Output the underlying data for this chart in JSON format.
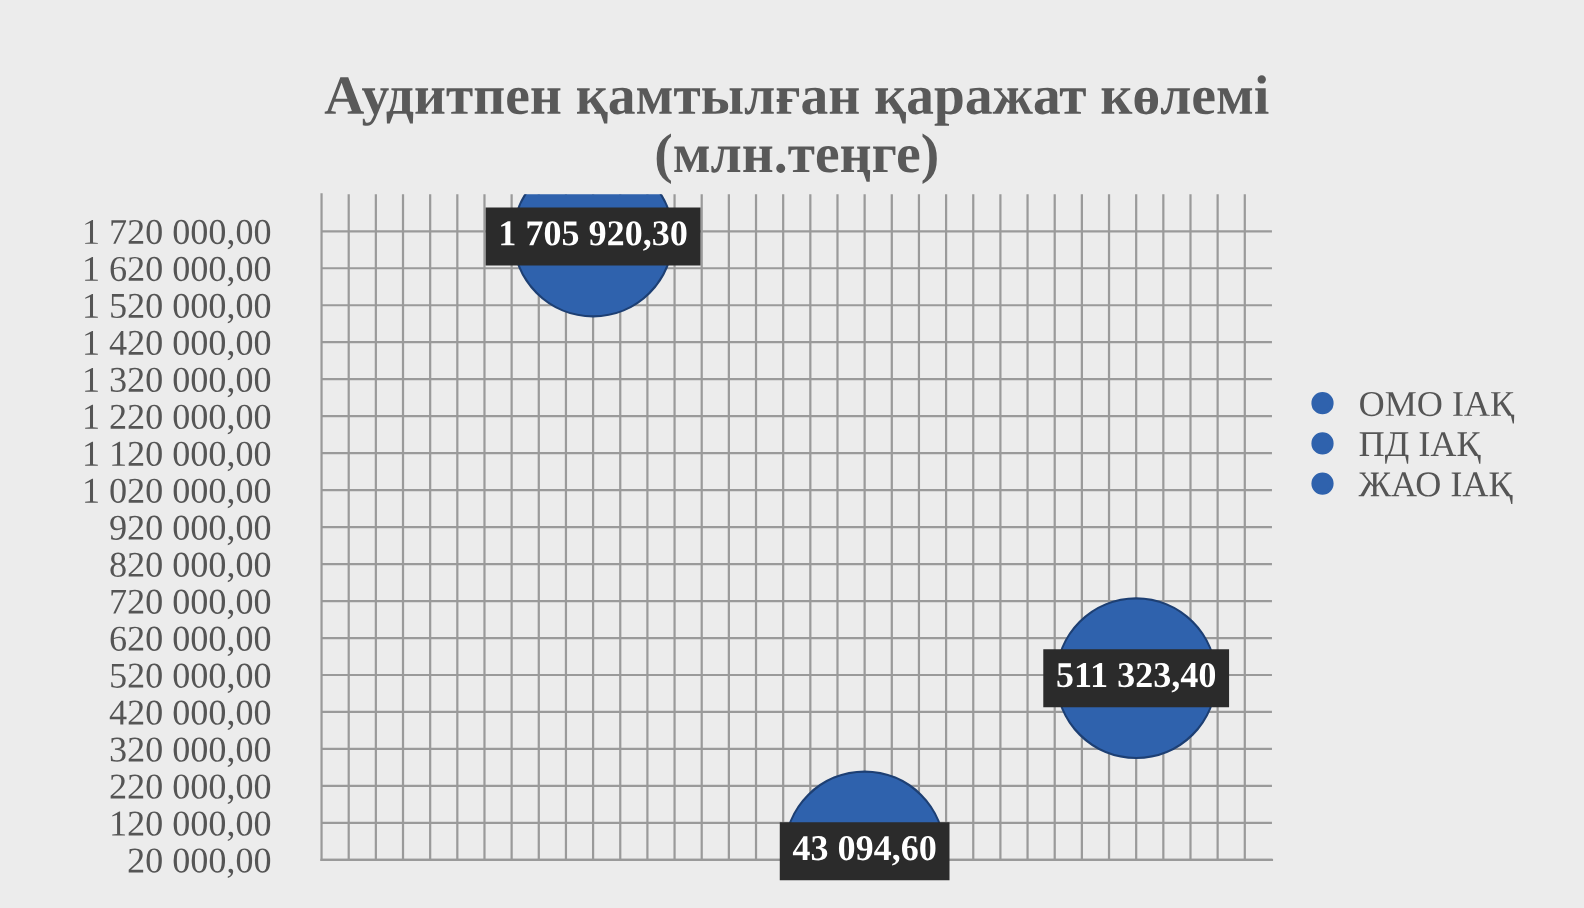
{
  "chart_data": {
    "type": "bubble",
    "title": "Аудитпен қамтылған қаражат көлемі\n(млн.теңге)",
    "categories": [
      null,
      null,
      null
    ],
    "series": [
      {
        "name": "ОМО ІАҚ",
        "color": "#2f62ad",
        "values": [
          1705920.3,
          null,
          null
        ],
        "sizes": [
          1,
          null,
          null
        ],
        "value_labels": [
          "1 705 920,30",
          null,
          null
        ]
      },
      {
        "name": "ПД ІАҚ",
        "color": "#2f62ad",
        "values": [
          null,
          43094.6,
          null
        ],
        "sizes": [
          null,
          1,
          null
        ],
        "value_labels": [
          null,
          "43 094,60",
          null
        ]
      },
      {
        "name": "ЖАО ІАҚ",
        "color": "#2f62ad",
        "values": [
          null,
          null,
          511323.4
        ],
        "sizes": [
          null,
          null,
          1
        ],
        "value_labels": [
          null,
          null,
          "511 323,40"
        ]
      }
    ],
    "ylim": [
      20000,
      1820000
    ],
    "yticks": [
      {
        "value": 20000,
        "label": "20 000,00"
      },
      {
        "value": 120000,
        "label": "120 000,00"
      },
      {
        "value": 220000,
        "label": "220 000,00"
      },
      {
        "value": 320000,
        "label": "320 000,00"
      },
      {
        "value": 420000,
        "label": "420 000,00"
      },
      {
        "value": 520000,
        "label": "520 000,00"
      },
      {
        "value": 620000,
        "label": "620 000,00"
      },
      {
        "value": 720000,
        "label": "720 000,00"
      },
      {
        "value": 820000,
        "label": "820 000,00"
      },
      {
        "value": 920000,
        "label": "920 000,00"
      },
      {
        "value": 1020000,
        "label": "1 020 000,00"
      },
      {
        "value": 1120000,
        "label": "1 120 000,00"
      },
      {
        "value": 1220000,
        "label": "1 220 000,00"
      },
      {
        "value": 1320000,
        "label": "1 320 000,00"
      },
      {
        "value": 1420000,
        "label": "1 420 000,00"
      },
      {
        "value": 1520000,
        "label": "1 520 000,00"
      },
      {
        "value": 1620000,
        "label": "1 620 000,00"
      },
      {
        "value": 1720000,
        "label": "1 720 000,00"
      }
    ],
    "tick_labels": "y",
    "grid": true,
    "legend": "right"
  }
}
